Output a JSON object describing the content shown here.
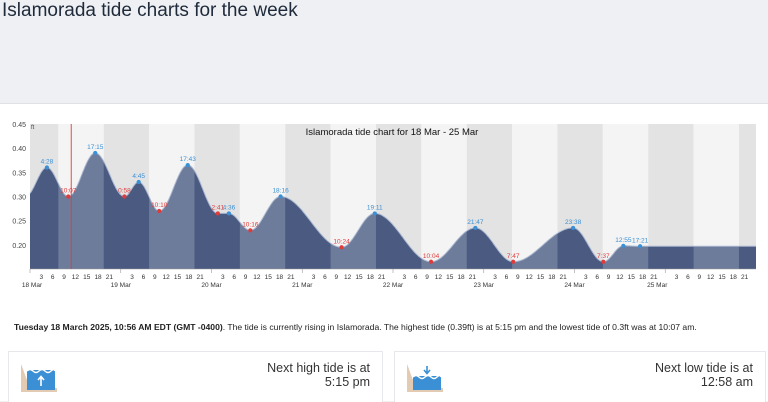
{
  "page": {
    "title": "Islamorada tide charts for the week"
  },
  "chart_data": {
    "type": "area",
    "title": "Islamorada tide chart for 18 Mar - 25 Mar",
    "y_unit": "ft",
    "ylim": [
      0.15,
      0.45
    ],
    "y_ticks": [
      "0.45",
      "0.40",
      "0.35",
      "0.30",
      "0.25",
      "0.20"
    ],
    "hour_ticks": [
      3,
      6,
      9,
      12,
      15,
      18,
      21
    ],
    "day_labels": [
      "18 Mar",
      "19 Mar",
      "20 Mar",
      "21 Mar",
      "22 Mar",
      "23 Mar",
      "24 Mar",
      "25 Mar"
    ],
    "x_range_hours": [
      0,
      192
    ],
    "current_time_hours": 10.9,
    "extremes": [
      {
        "t": 4.47,
        "v": 0.36,
        "label": "4:28",
        "type": "high"
      },
      {
        "t": 10.12,
        "v": 0.3,
        "label": "10:07",
        "type": "low"
      },
      {
        "t": 17.25,
        "v": 0.39,
        "label": "17:15",
        "type": "high"
      },
      {
        "t": 24.97,
        "v": 0.3,
        "label": "0:58",
        "type": "low"
      },
      {
        "t": 28.75,
        "v": 0.33,
        "label": "4:45",
        "type": "high"
      },
      {
        "t": 34.17,
        "v": 0.27,
        "label": "10:10",
        "type": "low"
      },
      {
        "t": 41.72,
        "v": 0.365,
        "label": "17:43",
        "type": "high"
      },
      {
        "t": 49.68,
        "v": 0.265,
        "label": "2:41",
        "type": "low"
      },
      {
        "t": 52.6,
        "v": 0.265,
        "label": "4:36",
        "type": "high"
      },
      {
        "t": 58.27,
        "v": 0.23,
        "label": "10:16",
        "type": "low"
      },
      {
        "t": 66.27,
        "v": 0.3,
        "label": "18:16",
        "type": "high"
      },
      {
        "t": 82.4,
        "v": 0.195,
        "label": "10:24",
        "type": "low"
      },
      {
        "t": 91.18,
        "v": 0.265,
        "label": "19:11",
        "type": "high"
      },
      {
        "t": 106.07,
        "v": 0.165,
        "label": "10:04",
        "type": "low"
      },
      {
        "t": 117.78,
        "v": 0.235,
        "label": "21:47",
        "type": "high"
      },
      {
        "t": 127.78,
        "v": 0.165,
        "label": "7:47",
        "type": "low"
      },
      {
        "t": 143.63,
        "v": 0.235,
        "label": "23:38",
        "type": "high"
      },
      {
        "t": 151.62,
        "v": 0.165,
        "label": "7:37",
        "type": "low"
      },
      {
        "t": 156.92,
        "v": 0.198,
        "label": "12:55",
        "type": "high"
      },
      {
        "t": 161.35,
        "v": 0.197,
        "label": "17:21",
        "type": "high"
      }
    ],
    "end_value": 0.197,
    "colors": {
      "fill_day": "#6e7c9b",
      "fill_night": "#4a5a80",
      "line": "#a9b7d1",
      "high": "#3b8fd4",
      "low": "#e03a3a",
      "band_dark": "#e3e3e3",
      "band_light": "#f4f4f4"
    }
  },
  "summary": {
    "date": "Tuesday 18 March 2025, 10:56 AM EDT (GMT -0400)",
    "text": ". The tide is currently rising in Islamorada. The highest tide (0.39ft) is at 5:15 pm and the lowest tide of 0.3ft was at 10:07 am."
  },
  "next_high": {
    "label": "Next high tide is at",
    "time": "5:15 pm",
    "icon": "high-tide-icon"
  },
  "next_low": {
    "label": "Next low tide is at",
    "time": "12:58 am",
    "icon": "low-tide-icon"
  }
}
